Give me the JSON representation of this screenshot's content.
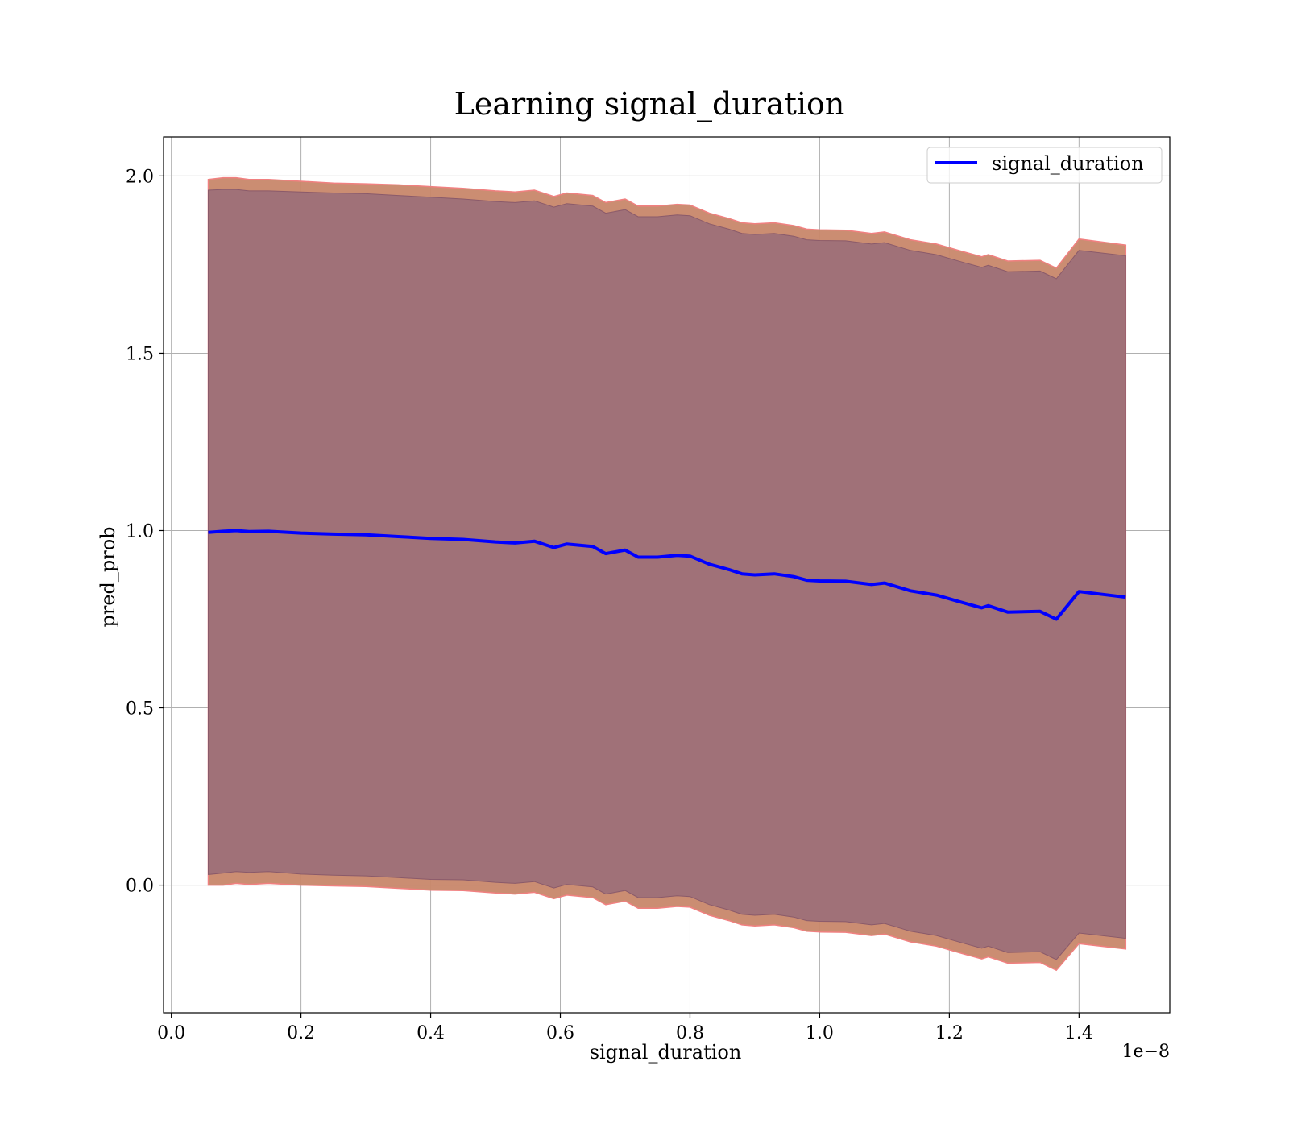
{
  "chart_data": {
    "type": "line",
    "title": "Learning signal_duration",
    "xlabel": "signal_duration",
    "ylabel": "pred_prob",
    "x_offset_text": "1e−8",
    "xlim": [
      -0.012,
      1.54
    ],
    "ylim": [
      -0.36,
      2.11
    ],
    "xticks": [
      0.0,
      0.2,
      0.4,
      0.6,
      0.8,
      1.0,
      1.2,
      1.4
    ],
    "xtick_labels": [
      "0.0",
      "0.2",
      "0.4",
      "0.6",
      "0.8",
      "1.0",
      "1.2",
      "1.4"
    ],
    "yticks": [
      0.0,
      0.5,
      1.0,
      1.5,
      2.0
    ],
    "ytick_labels": [
      "0.0",
      "0.5",
      "1.0",
      "1.5",
      "2.0"
    ],
    "grid": true,
    "legend_position": "top-right",
    "series": [
      {
        "name": "signal_duration",
        "color": "#0000ff",
        "x": [
          0.057,
          0.08,
          0.1,
          0.12,
          0.15,
          0.2,
          0.25,
          0.3,
          0.35,
          0.4,
          0.45,
          0.5,
          0.53,
          0.56,
          0.59,
          0.61,
          0.65,
          0.67,
          0.7,
          0.72,
          0.75,
          0.78,
          0.8,
          0.83,
          0.86,
          0.88,
          0.9,
          0.93,
          0.96,
          0.98,
          1.0,
          1.04,
          1.08,
          1.1,
          1.14,
          1.18,
          1.22,
          1.25,
          1.26,
          1.29,
          1.34,
          1.365,
          1.4,
          1.472
        ],
        "y": [
          0.995,
          0.998,
          1.0,
          0.997,
          0.998,
          0.993,
          0.99,
          0.988,
          0.983,
          0.978,
          0.975,
          0.968,
          0.965,
          0.97,
          0.952,
          0.962,
          0.955,
          0.935,
          0.945,
          0.925,
          0.925,
          0.93,
          0.928,
          0.905,
          0.89,
          0.878,
          0.875,
          0.878,
          0.87,
          0.86,
          0.858,
          0.857,
          0.848,
          0.852,
          0.83,
          0.818,
          0.797,
          0.782,
          0.788,
          0.77,
          0.772,
          0.75,
          0.828,
          0.812
        ],
        "band_inner_upper": [
          1.96,
          1.962,
          1.962,
          1.958,
          1.958,
          1.955,
          1.952,
          1.95,
          1.945,
          1.94,
          1.935,
          1.928,
          1.925,
          1.93,
          1.912,
          1.922,
          1.915,
          1.895,
          1.905,
          1.885,
          1.885,
          1.89,
          1.888,
          1.865,
          1.85,
          1.838,
          1.835,
          1.838,
          1.83,
          1.82,
          1.818,
          1.817,
          1.808,
          1.812,
          1.79,
          1.778,
          1.757,
          1.742,
          1.748,
          1.73,
          1.732,
          1.71,
          1.79,
          1.775
        ],
        "band_inner_lower": [
          0.03,
          0.034,
          0.038,
          0.036,
          0.038,
          0.031,
          0.028,
          0.026,
          0.021,
          0.016,
          0.015,
          0.008,
          0.005,
          0.01,
          -0.008,
          0.002,
          -0.005,
          -0.025,
          -0.015,
          -0.035,
          -0.035,
          -0.03,
          -0.032,
          -0.055,
          -0.07,
          -0.082,
          -0.085,
          -0.082,
          -0.09,
          -0.1,
          -0.102,
          -0.103,
          -0.112,
          -0.108,
          -0.13,
          -0.142,
          -0.163,
          -0.178,
          -0.172,
          -0.19,
          -0.188,
          -0.21,
          -0.135,
          -0.15
        ],
        "band_outer_upper": [
          1.99,
          1.995,
          1.995,
          1.99,
          1.99,
          1.985,
          1.98,
          1.978,
          1.975,
          1.97,
          1.965,
          1.958,
          1.955,
          1.96,
          1.942,
          1.952,
          1.945,
          1.925,
          1.935,
          1.915,
          1.915,
          1.92,
          1.918,
          1.895,
          1.88,
          1.868,
          1.865,
          1.868,
          1.86,
          1.85,
          1.848,
          1.847,
          1.838,
          1.842,
          1.82,
          1.808,
          1.787,
          1.772,
          1.778,
          1.76,
          1.762,
          1.74,
          1.822,
          1.805
        ],
        "band_outer_lower": [
          0.0,
          0.0,
          0.005,
          0.002,
          0.005,
          0.0,
          -0.002,
          -0.004,
          -0.009,
          -0.014,
          -0.015,
          -0.022,
          -0.025,
          -0.02,
          -0.038,
          -0.028,
          -0.035,
          -0.055,
          -0.045,
          -0.065,
          -0.065,
          -0.06,
          -0.062,
          -0.085,
          -0.1,
          -0.112,
          -0.115,
          -0.112,
          -0.12,
          -0.13,
          -0.132,
          -0.133,
          -0.142,
          -0.138,
          -0.16,
          -0.172,
          -0.193,
          -0.208,
          -0.202,
          -0.22,
          -0.218,
          -0.24,
          -0.165,
          -0.18
        ]
      }
    ]
  }
}
